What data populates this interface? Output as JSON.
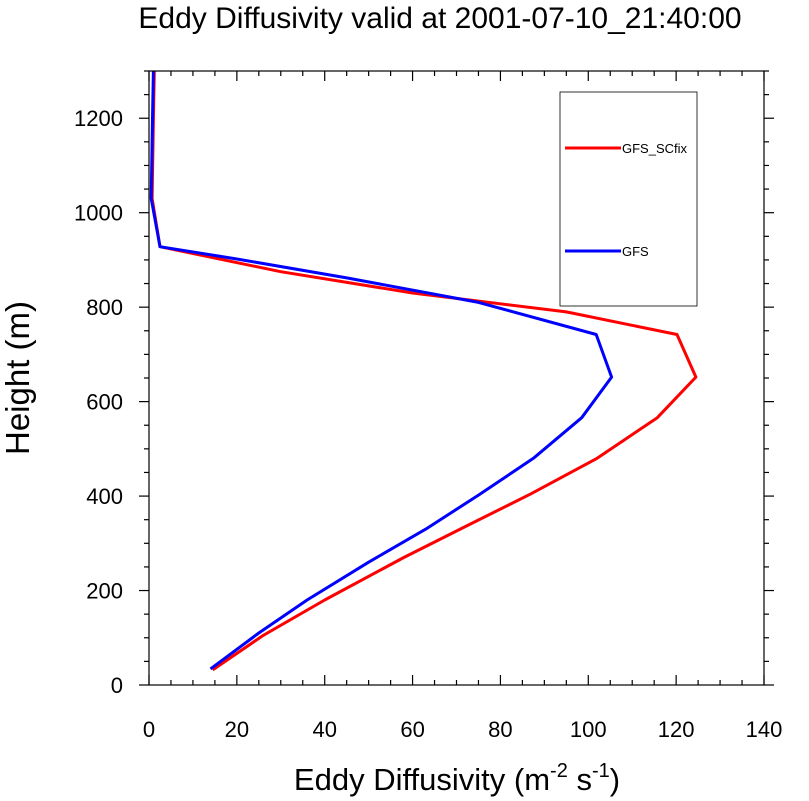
{
  "chart_data": {
    "type": "line",
    "title": "Eddy Diffusivity valid at 2001-07-10_21:40:00",
    "xlabel": {
      "base": "Eddy Diffusivity (m",
      "sup1": "-2",
      "mid": " s",
      "sup2": "-1",
      "end": ")"
    },
    "ylabel": "Height (m)",
    "xlim": [
      0,
      140
    ],
    "ylim": [
      0,
      1300
    ],
    "x_ticks": [
      "0",
      "20",
      "40",
      "60",
      "80",
      "100",
      "120",
      "140"
    ],
    "y_ticks": [
      "0",
      "200",
      "400",
      "600",
      "800",
      "1000",
      "1200"
    ],
    "grid": false,
    "legend_position": "top-right",
    "series": [
      {
        "name": "GFS_SCfix",
        "color": "#ff0000",
        "points": [
          [
            14.5,
            32
          ],
          [
            26,
            105
          ],
          [
            40,
            180
          ],
          [
            58,
            270
          ],
          [
            73,
            340
          ],
          [
            87,
            405
          ],
          [
            102,
            480
          ],
          [
            115.7,
            566
          ],
          [
            124.5,
            652
          ],
          [
            120.2,
            742
          ],
          [
            95,
            790
          ],
          [
            60,
            830
          ],
          [
            30,
            875
          ],
          [
            2.5,
            928
          ],
          [
            0.7,
            1030
          ],
          [
            1,
            1200
          ],
          [
            1.2,
            1300
          ]
        ]
      },
      {
        "name": "GFS",
        "color": "#0000ff",
        "points": [
          [
            14,
            34
          ],
          [
            25,
            110
          ],
          [
            36,
            180
          ],
          [
            50,
            260
          ],
          [
            63,
            330
          ],
          [
            75,
            402
          ],
          [
            87.5,
            480
          ],
          [
            98.5,
            566
          ],
          [
            105.3,
            652
          ],
          [
            101.8,
            742
          ],
          [
            75,
            810
          ],
          [
            45,
            862
          ],
          [
            20,
            902
          ],
          [
            2.5,
            928
          ],
          [
            0.5,
            1030
          ],
          [
            0.8,
            1200
          ],
          [
            1,
            1300
          ]
        ]
      }
    ]
  }
}
